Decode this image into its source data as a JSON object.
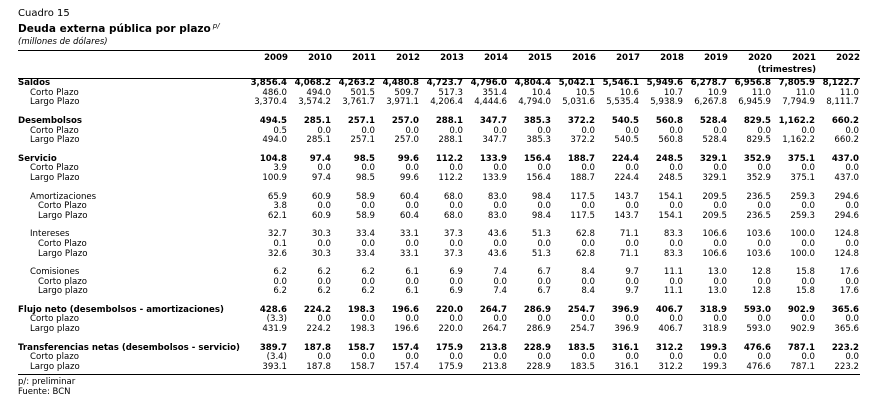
{
  "header": {
    "cuadro": "Cuadro 15",
    "title": "Deuda externa pública por plazo",
    "title_note": "p/",
    "units": "(millones de dólares)",
    "period": "(trimestres)"
  },
  "years": [
    "2009",
    "2010",
    "2011",
    "2012",
    "2013",
    "2014",
    "2015",
    "2016",
    "2017",
    "2018",
    "2019",
    "2020",
    "2021",
    "2022"
  ],
  "rows": [
    {
      "label": "Saldos",
      "style": "bold",
      "values": [
        "3,856.4",
        "4,068.2",
        "4,263.2",
        "4,480.8",
        "4,723.7",
        "4,796.0",
        "4,804.4",
        "5,042.1",
        "5,546.1",
        "5,949.6",
        "6,278.7",
        "6,956.8",
        "7,805.9",
        "8,122.7"
      ]
    },
    {
      "label": "Corto Plazo",
      "style": "sub",
      "values": [
        "486.0",
        "494.0",
        "501.5",
        "509.7",
        "517.3",
        "351.4",
        "10.4",
        "10.5",
        "10.6",
        "10.7",
        "10.9",
        "11.0",
        "11.0",
        "11.0"
      ]
    },
    {
      "label": "Largo Plazo",
      "style": "sub",
      "values": [
        "3,370.4",
        "3,574.2",
        "3,761.7",
        "3,971.1",
        "4,206.4",
        "4,444.6",
        "4,794.0",
        "5,031.6",
        "5,535.4",
        "5,938.9",
        "6,267.8",
        "6,945.9",
        "7,794.9",
        "8,111.7"
      ]
    },
    {
      "style": "gap"
    },
    {
      "label": "Desembolsos",
      "style": "bold",
      "values": [
        "494.5",
        "285.1",
        "257.1",
        "257.0",
        "288.1",
        "347.7",
        "385.3",
        "372.2",
        "540.5",
        "560.8",
        "528.4",
        "829.5",
        "1,162.2",
        "660.2"
      ]
    },
    {
      "label": "Corto Plazo",
      "style": "sub",
      "values": [
        "0.5",
        "0.0",
        "0.0",
        "0.0",
        "0.0",
        "0.0",
        "0.0",
        "0.0",
        "0.0",
        "0.0",
        "0.0",
        "0.0",
        "0.0",
        "0.0"
      ]
    },
    {
      "label": "Largo Plazo",
      "style": "sub",
      "values": [
        "494.0",
        "285.1",
        "257.1",
        "257.0",
        "288.1",
        "347.7",
        "385.3",
        "372.2",
        "540.5",
        "560.8",
        "528.4",
        "829.5",
        "1,162.2",
        "660.2"
      ]
    },
    {
      "style": "gap"
    },
    {
      "label": "Servicio",
      "style": "bold",
      "values": [
        "104.8",
        "97.4",
        "98.5",
        "99.6",
        "112.2",
        "133.9",
        "156.4",
        "188.7",
        "224.4",
        "248.5",
        "329.1",
        "352.9",
        "375.1",
        "437.0"
      ]
    },
    {
      "label": "Corto Plazo",
      "style": "sub",
      "values": [
        "3.9",
        "0.0",
        "0.0",
        "0.0",
        "0.0",
        "0.0",
        "0.0",
        "0.0",
        "0.0",
        "0.0",
        "0.0",
        "0.0",
        "0.0",
        "0.0"
      ]
    },
    {
      "label": "Largo Plazo",
      "style": "sub",
      "values": [
        "100.9",
        "97.4",
        "98.5",
        "99.6",
        "112.2",
        "133.9",
        "156.4",
        "188.7",
        "224.4",
        "248.5",
        "329.1",
        "352.9",
        "375.1",
        "437.0"
      ]
    },
    {
      "style": "gap"
    },
    {
      "label": "Amortizaciones",
      "style": "sec",
      "values": [
        "65.9",
        "60.9",
        "58.9",
        "60.4",
        "68.0",
        "83.0",
        "98.4",
        "117.5",
        "143.7",
        "154.1",
        "209.5",
        "236.5",
        "259.3",
        "294.6"
      ]
    },
    {
      "label": "Corto Plazo",
      "style": "subsub",
      "values": [
        "3.8",
        "0.0",
        "0.0",
        "0.0",
        "0.0",
        "0.0",
        "0.0",
        "0.0",
        "0.0",
        "0.0",
        "0.0",
        "0.0",
        "0.0",
        "0.0"
      ]
    },
    {
      "label": "Largo Plazo",
      "style": "subsub",
      "values": [
        "62.1",
        "60.9",
        "58.9",
        "60.4",
        "68.0",
        "83.0",
        "98.4",
        "117.5",
        "143.7",
        "154.1",
        "209.5",
        "236.5",
        "259.3",
        "294.6"
      ]
    },
    {
      "style": "gap"
    },
    {
      "label": "Intereses",
      "style": "sec",
      "values": [
        "32.7",
        "30.3",
        "33.4",
        "33.1",
        "37.3",
        "43.6",
        "51.3",
        "62.8",
        "71.1",
        "83.3",
        "106.6",
        "103.6",
        "100.0",
        "124.8"
      ]
    },
    {
      "label": "Corto Plazo",
      "style": "subsub",
      "values": [
        "0.1",
        "0.0",
        "0.0",
        "0.0",
        "0.0",
        "0.0",
        "0.0",
        "0.0",
        "0.0",
        "0.0",
        "0.0",
        "0.0",
        "0.0",
        "0.0"
      ]
    },
    {
      "label": "Largo Plazo",
      "style": "subsub",
      "values": [
        "32.6",
        "30.3",
        "33.4",
        "33.1",
        "37.3",
        "43.6",
        "51.3",
        "62.8",
        "71.1",
        "83.3",
        "106.6",
        "103.6",
        "100.0",
        "124.8"
      ]
    },
    {
      "style": "gap"
    },
    {
      "label": "Comisiones",
      "style": "sec",
      "values": [
        "6.2",
        "6.2",
        "6.2",
        "6.1",
        "6.9",
        "7.4",
        "6.7",
        "8.4",
        "9.7",
        "11.1",
        "13.0",
        "12.8",
        "15.8",
        "17.6"
      ]
    },
    {
      "label": "Corto plazo",
      "style": "subsub",
      "values": [
        "0.0",
        "0.0",
        "0.0",
        "0.0",
        "0.0",
        "0.0",
        "0.0",
        "0.0",
        "0.0",
        "0.0",
        "0.0",
        "0.0",
        "0.0",
        "0.0"
      ]
    },
    {
      "label": "Largo plazo",
      "style": "subsub",
      "values": [
        "6.2",
        "6.2",
        "6.2",
        "6.1",
        "6.9",
        "7.4",
        "6.7",
        "8.4",
        "9.7",
        "11.1",
        "13.0",
        "12.8",
        "15.8",
        "17.6"
      ]
    },
    {
      "style": "gap"
    },
    {
      "label": "Flujo neto (desembolsos - amortizaciones)",
      "style": "bold",
      "values": [
        "428.6",
        "224.2",
        "198.3",
        "196.6",
        "220.0",
        "264.7",
        "286.9",
        "254.7",
        "396.9",
        "406.7",
        "318.9",
        "593.0",
        "902.9",
        "365.6"
      ]
    },
    {
      "label": "Corto plazo",
      "style": "sub",
      "values": [
        "(3.3)",
        "0.0",
        "0.0",
        "0.0",
        "0.0",
        "0.0",
        "0.0",
        "0.0",
        "0.0",
        "0.0",
        "0.0",
        "0.0",
        "0.0",
        "0.0"
      ]
    },
    {
      "label": "Largo plazo",
      "style": "sub",
      "values": [
        "431.9",
        "224.2",
        "198.3",
        "196.6",
        "220.0",
        "264.7",
        "286.9",
        "254.7",
        "396.9",
        "406.7",
        "318.9",
        "593.0",
        "902.9",
        "365.6"
      ]
    },
    {
      "style": "gap"
    },
    {
      "label": "Transferencias netas (desembolsos - servicio)",
      "style": "bold",
      "values": [
        "389.7",
        "187.8",
        "158.7",
        "157.4",
        "175.9",
        "213.8",
        "228.9",
        "183.5",
        "316.1",
        "312.2",
        "199.3",
        "476.6",
        "787.1",
        "223.2"
      ]
    },
    {
      "label": "Corto plazo",
      "style": "sub",
      "values": [
        "(3.4)",
        "0.0",
        "0.0",
        "0.0",
        "0.0",
        "0.0",
        "0.0",
        "0.0",
        "0.0",
        "0.0",
        "0.0",
        "0.0",
        "0.0",
        "0.0"
      ]
    },
    {
      "label": "Largo plazo",
      "style": "sub last",
      "values": [
        "393.1",
        "187.8",
        "158.7",
        "157.4",
        "175.9",
        "213.8",
        "228.9",
        "183.5",
        "316.1",
        "312.2",
        "199.3",
        "476.6",
        "787.1",
        "223.2"
      ]
    }
  ],
  "notes": [
    "p/: preliminar",
    "Fuente: BCN"
  ]
}
